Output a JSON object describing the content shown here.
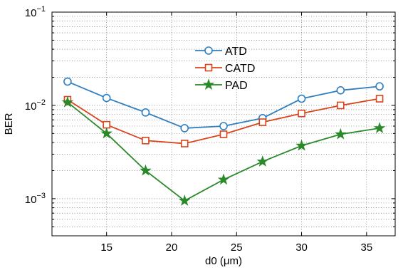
{
  "chart_data": {
    "type": "line",
    "xlabel": "d0 (μm)",
    "ylabel": "BER",
    "y_scale": "log",
    "xlim": [
      10.8,
      37.2
    ],
    "ylim": [
      0.0004,
      0.1
    ],
    "grid": true,
    "legend_placement": "top-center",
    "x_ticks": [
      15,
      20,
      25,
      30,
      35
    ],
    "y_ticks": [
      {
        "value": 0.1,
        "base": "10",
        "exp": "−1"
      },
      {
        "value": 0.01,
        "base": "10",
        "exp": "−2"
      },
      {
        "value": 0.001,
        "base": "10",
        "exp": "−3"
      }
    ],
    "x": [
      12,
      15,
      18,
      21,
      24,
      27,
      30,
      33,
      36
    ],
    "series": [
      {
        "name": "ATD",
        "color": "#2f7fc1",
        "marker": "circle",
        "values": [
          0.018,
          0.012,
          0.0084,
          0.0057,
          0.006,
          0.0073,
          0.0118,
          0.0145,
          0.016
        ]
      },
      {
        "name": "CATD",
        "color": "#d9441a",
        "marker": "square",
        "values": [
          0.0115,
          0.0062,
          0.0042,
          0.0039,
          0.0049,
          0.0066,
          0.0082,
          0.01,
          0.0118
        ]
      },
      {
        "name": "PAD",
        "color": "#2a8a2a",
        "marker": "star",
        "values": [
          0.0108,
          0.005,
          0.002,
          0.00095,
          0.0016,
          0.0025,
          0.0037,
          0.0049,
          0.0057
        ]
      }
    ]
  }
}
